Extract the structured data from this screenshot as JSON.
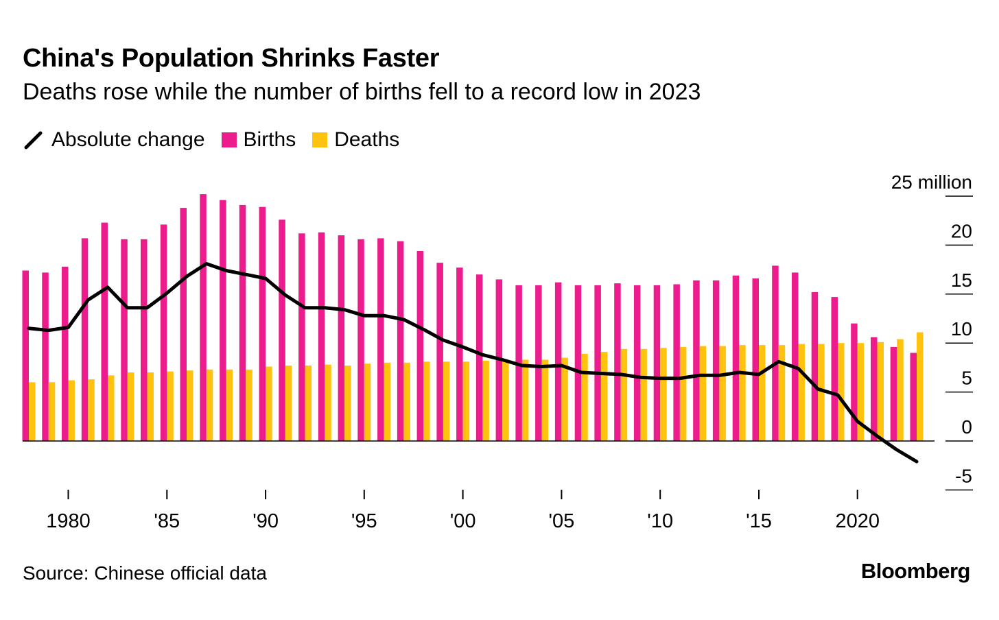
{
  "chart_data": {
    "type": "bar",
    "title": "China's Population Shrinks Faster",
    "subtitle": "Deaths rose while the number of births fell to a record low in 2023",
    "source": "Source: Chinese official data",
    "brand": "Bloomberg",
    "unit_label": "25 million",
    "ylim": [
      -5,
      25
    ],
    "y_ticks": [
      -5,
      0,
      5,
      10,
      15,
      20,
      25
    ],
    "y_tick_labels": [
      "-5",
      "0",
      "5",
      "10",
      "15",
      "20",
      "25 million"
    ],
    "x_ticks": [
      1980,
      1985,
      1990,
      1995,
      2000,
      2005,
      2010,
      2015,
      2020
    ],
    "x_tick_labels": [
      "1980",
      "'85",
      "'90",
      "'95",
      "'00",
      "'05",
      "'10",
      "'15",
      "2020"
    ],
    "x": [
      1978,
      1979,
      1980,
      1981,
      1982,
      1983,
      1984,
      1985,
      1986,
      1987,
      1988,
      1989,
      1990,
      1991,
      1992,
      1993,
      1994,
      1995,
      1996,
      1997,
      1998,
      1999,
      2000,
      2001,
      2002,
      2003,
      2004,
      2005,
      2006,
      2007,
      2008,
      2009,
      2010,
      2011,
      2012,
      2013,
      2014,
      2015,
      2016,
      2017,
      2018,
      2019,
      2020,
      2021,
      2022,
      2023
    ],
    "legend": [
      {
        "name": "Absolute change",
        "kind": "line",
        "color": "#000000"
      },
      {
        "name": "Births",
        "kind": "bar",
        "color": "#ED1C8C"
      },
      {
        "name": "Deaths",
        "kind": "bar",
        "color": "#FFC20E"
      }
    ],
    "series": [
      {
        "name": "Births",
        "type": "bar",
        "color": "#ED1C8C",
        "values": [
          17.4,
          17.2,
          17.8,
          20.7,
          22.3,
          20.6,
          20.6,
          22.1,
          23.8,
          25.2,
          24.6,
          24.1,
          23.9,
          22.6,
          21.2,
          21.3,
          21.0,
          20.6,
          20.7,
          20.4,
          19.4,
          18.2,
          17.7,
          17.0,
          16.5,
          15.9,
          15.9,
          16.2,
          15.9,
          15.9,
          16.1,
          15.9,
          15.9,
          16.0,
          16.4,
          16.4,
          16.9,
          16.6,
          17.9,
          17.2,
          15.2,
          14.7,
          12.0,
          10.6,
          9.6,
          9.0
        ]
      },
      {
        "name": "Deaths",
        "type": "bar",
        "color": "#FFC20E",
        "values": [
          6.0,
          6.0,
          6.2,
          6.3,
          6.7,
          7.0,
          7.0,
          7.1,
          7.2,
          7.3,
          7.3,
          7.3,
          7.6,
          7.7,
          7.7,
          7.8,
          7.7,
          7.9,
          8.0,
          8.0,
          8.1,
          8.1,
          8.1,
          8.2,
          8.3,
          8.3,
          8.3,
          8.5,
          8.9,
          9.1,
          9.4,
          9.4,
          9.5,
          9.6,
          9.7,
          9.7,
          9.8,
          9.8,
          9.8,
          9.9,
          9.9,
          10.0,
          10.0,
          10.1,
          10.4,
          11.1
        ]
      },
      {
        "name": "Absolute change",
        "type": "line",
        "color": "#000000",
        "values": [
          11.5,
          11.3,
          11.6,
          14.4,
          15.7,
          13.6,
          13.6,
          15.1,
          16.8,
          18.1,
          17.4,
          17.0,
          16.6,
          14.9,
          13.6,
          13.6,
          13.4,
          12.8,
          12.8,
          12.4,
          11.4,
          10.3,
          9.6,
          8.8,
          8.3,
          7.7,
          7.6,
          7.7,
          7.0,
          6.9,
          6.8,
          6.5,
          6.4,
          6.4,
          6.7,
          6.7,
          7.0,
          6.8,
          8.1,
          7.4,
          5.3,
          4.7,
          2.0,
          0.5,
          -0.9,
          -2.1
        ]
      }
    ]
  }
}
